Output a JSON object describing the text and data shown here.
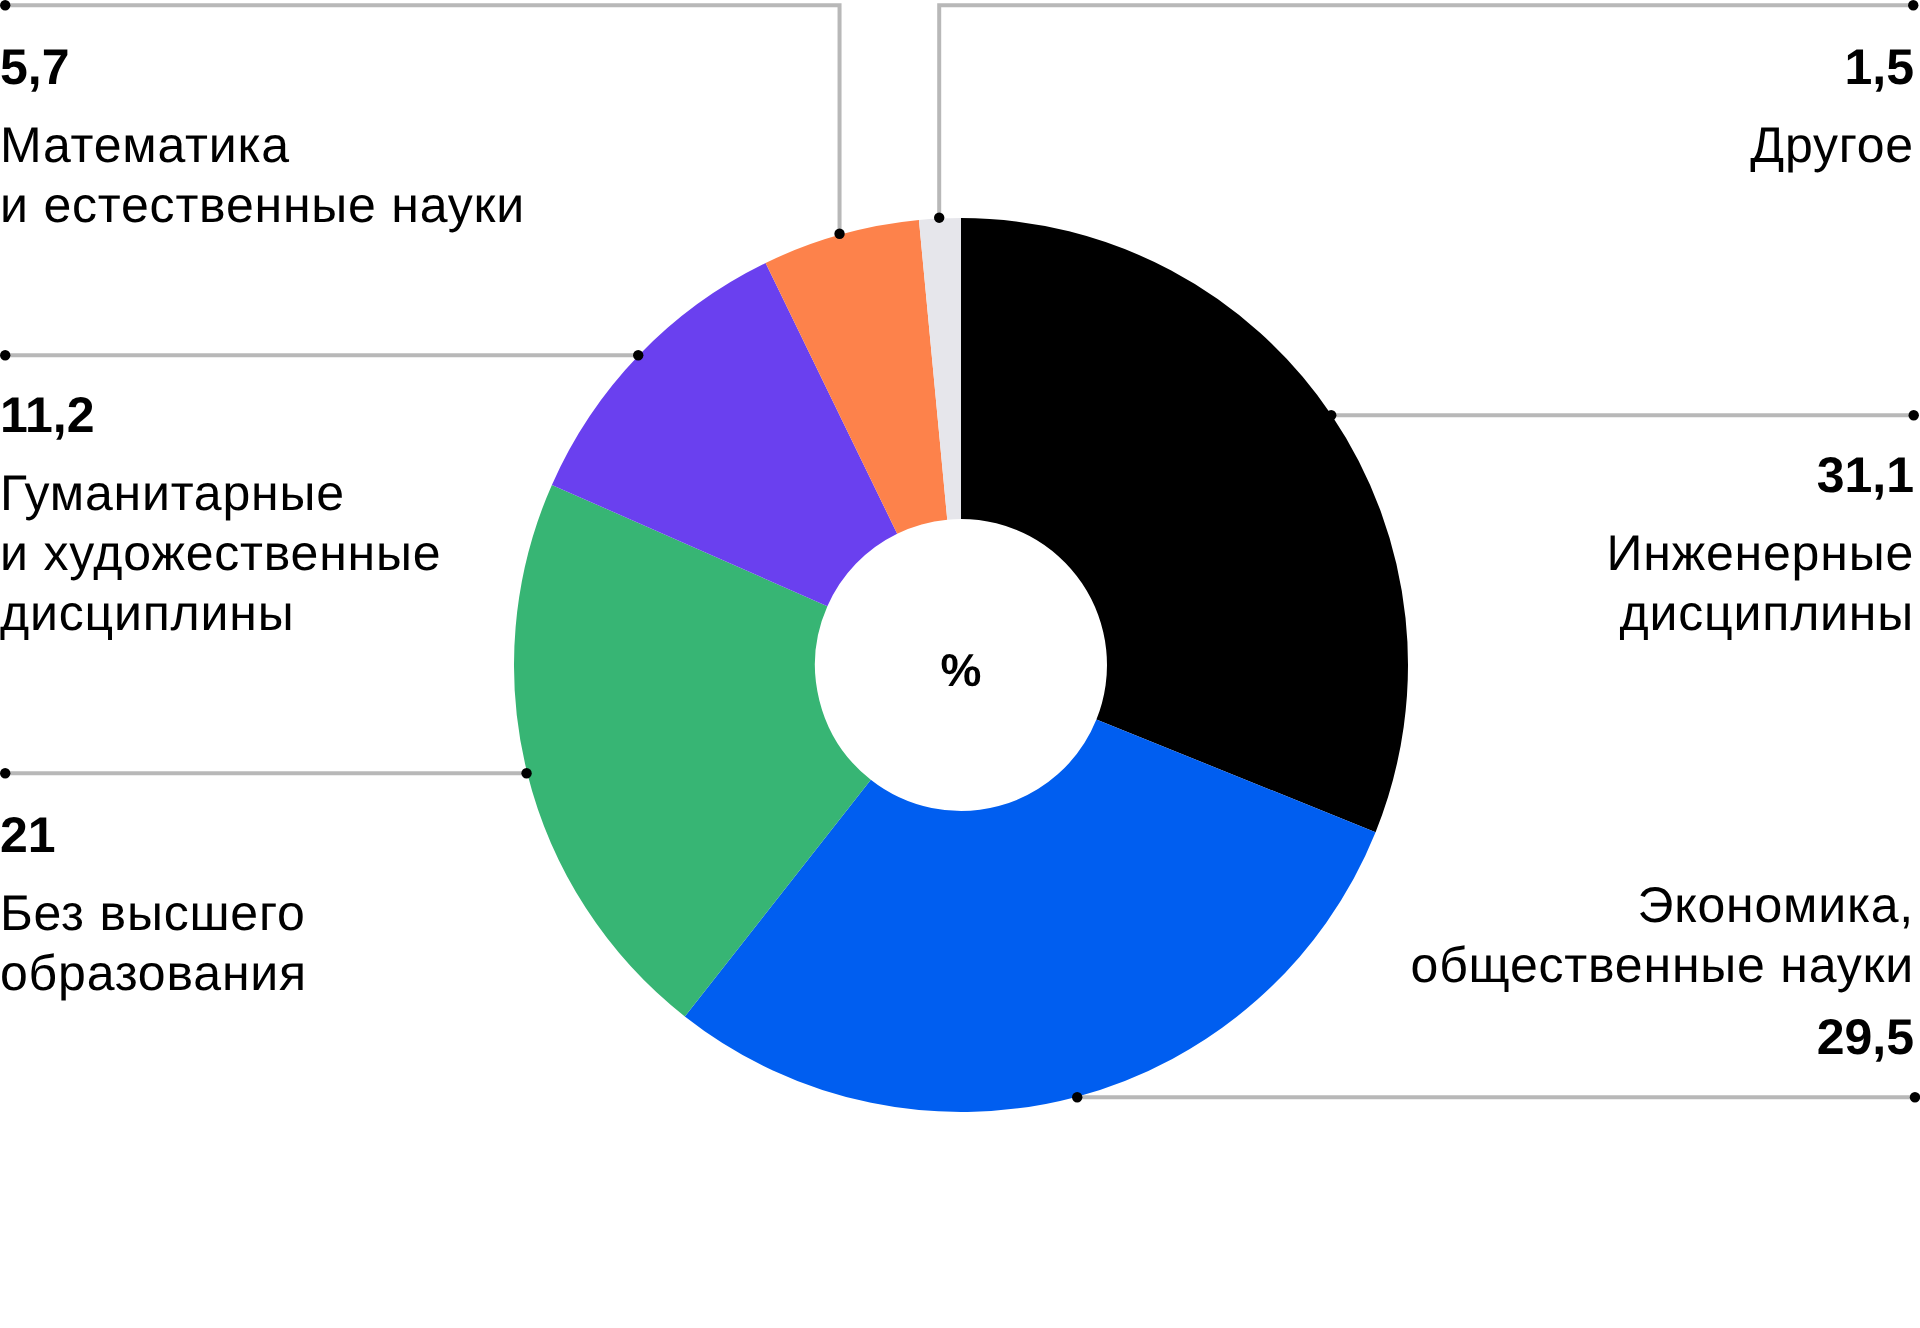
{
  "chart_data": {
    "type": "donut",
    "categories": [
      "Инженерные\nдисциплины",
      "Экономика,\nобщественные науки",
      "Без высшего\nобразования",
      "Гуманитарные\nи художественные\nдисциплины",
      "Математика\nи естественные науки",
      "Другое"
    ],
    "values": [
      31.1,
      29.5,
      21,
      11.2,
      5.7,
      1.5
    ],
    "colors": [
      "#000000",
      "#005ef0",
      "#37b574",
      "#6a40ef",
      "#fd824b",
      "#e6e6eb"
    ],
    "value_labels": [
      "31,1",
      "29,5",
      "21",
      "11,2",
      "5,7",
      "1,5"
    ],
    "annotations": [
      "%"
    ]
  }
}
